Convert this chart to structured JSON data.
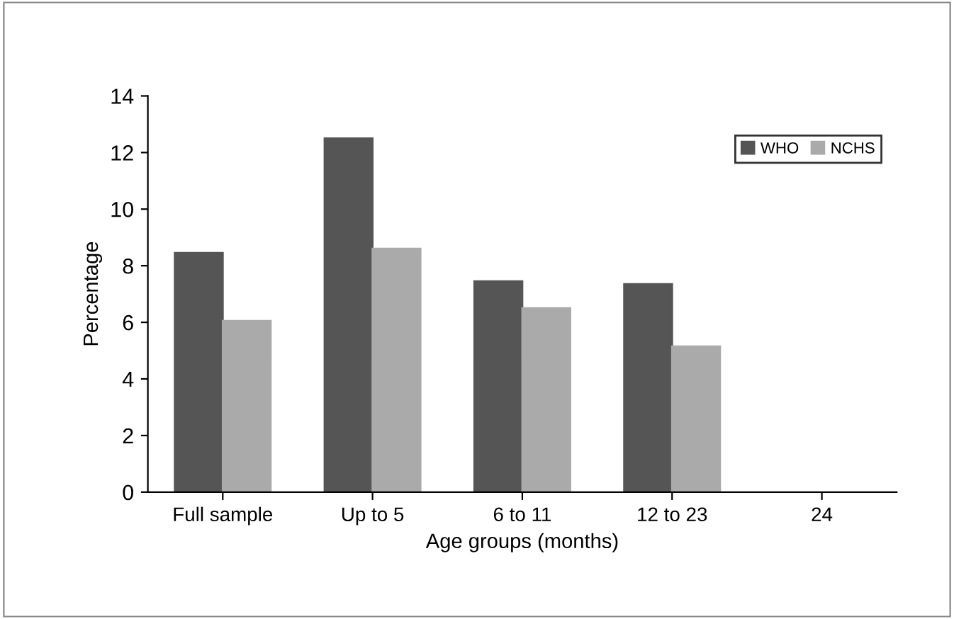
{
  "chart_data": {
    "type": "bar",
    "xlabel": "Age groups (months)",
    "ylabel": "Percentage",
    "categories": [
      "Full sample",
      "Up to 5",
      "6 to 11",
      "12 to 23",
      "24"
    ],
    "series": [
      {
        "name": "WHO",
        "color": "#555555",
        "values": [
          8.45,
          12.5,
          7.45,
          7.35,
          null
        ]
      },
      {
        "name": "NCHS",
        "color": "#aaaaaa",
        "values": [
          6.05,
          8.6,
          6.5,
          5.15,
          null
        ]
      }
    ],
    "ylim": [
      0,
      14
    ],
    "yticks": [
      0,
      2,
      4,
      6,
      8,
      10,
      12,
      14
    ],
    "grid": false,
    "legend": "top right"
  }
}
